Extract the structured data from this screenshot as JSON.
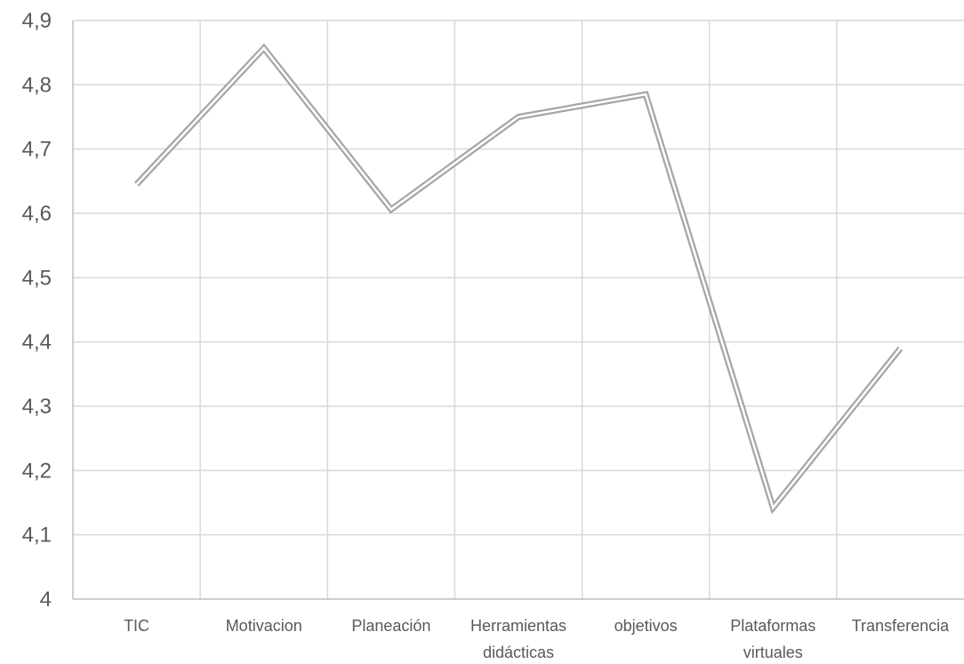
{
  "chart_data": {
    "type": "line",
    "title": "",
    "xlabel": "",
    "ylabel": "",
    "categories": [
      [
        "TIC"
      ],
      [
        "Motivacion"
      ],
      [
        "Planeación"
      ],
      [
        "Herramientas",
        "didácticas"
      ],
      [
        "objetivos"
      ],
      [
        "Plataformas",
        "virtuales"
      ],
      [
        "Transferencia"
      ]
    ],
    "yticks": [
      "4",
      "4,1",
      "4,2",
      "4,3",
      "4,4",
      "4,5",
      "4,6",
      "4,7",
      "4,8",
      "4,9"
    ],
    "ylim": [
      4,
      4.9
    ],
    "grid": true,
    "series": [
      {
        "values": [
          4.645,
          4.857,
          4.606,
          4.75,
          4.785,
          4.142,
          4.39
        ],
        "color": "#a6a6a6"
      }
    ],
    "colors": {
      "grid": "#d9d9d9",
      "axis": "#bfbfbf",
      "text": "#595959",
      "line": "#a6a6a6",
      "line_inner": "#ffffff"
    }
  }
}
